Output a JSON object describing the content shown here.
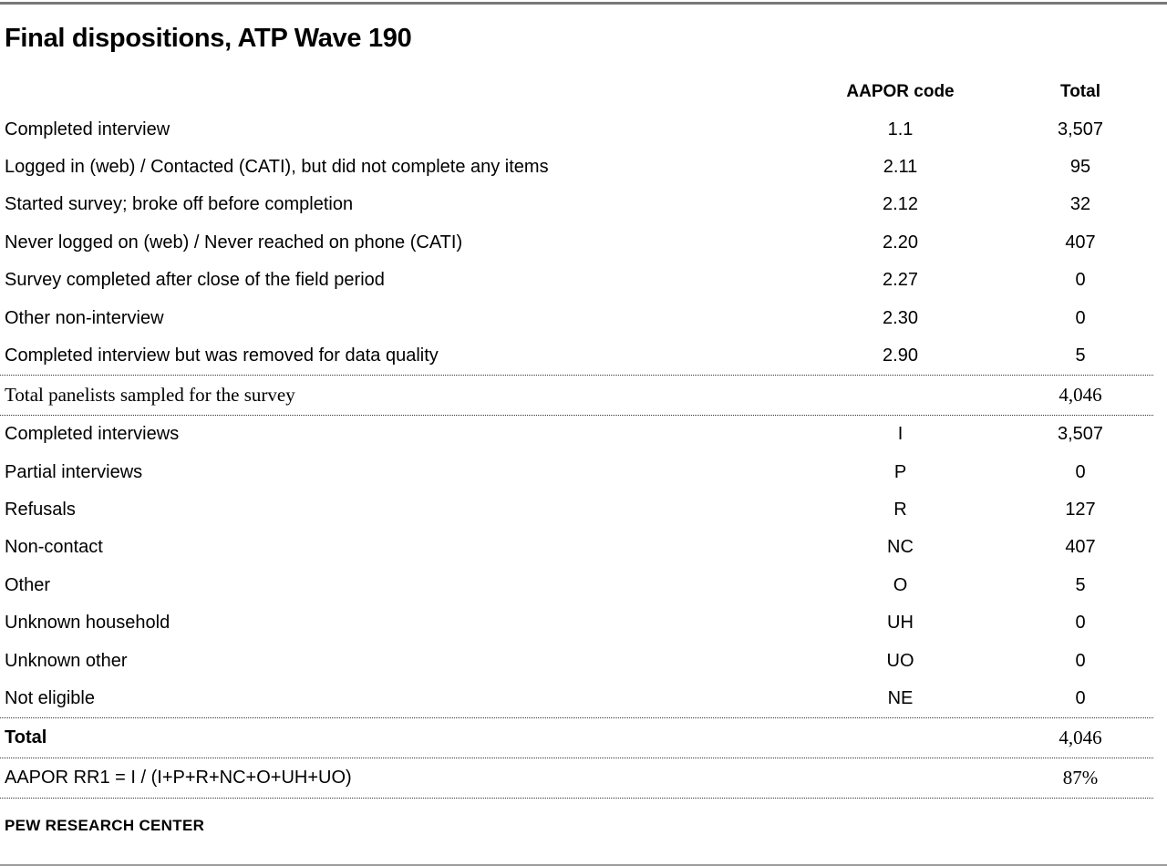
{
  "title": "Final dispositions, ATP Wave 190",
  "footer": "PEW RESEARCH CENTER",
  "colors": {
    "text": "#000000",
    "top_rule": "#787878",
    "bottom_rule": "#9c9c9c",
    "dotted_rule": "#333333"
  },
  "table": {
    "columns": {
      "label": "",
      "code": "AAPOR code",
      "total": "Total"
    },
    "rows": [
      {
        "label": "Completed interview",
        "code": "1.1",
        "total": "3,507",
        "variant": "normal"
      },
      {
        "label": "Logged in (web) / Contacted (CATI), but did not complete any items",
        "code": "2.11",
        "total": "95",
        "variant": "normal"
      },
      {
        "label": "Started survey; broke off before completion",
        "code": "2.12",
        "total": "32",
        "variant": "normal"
      },
      {
        "label": "Never logged on (web) / Never reached on phone (CATI)",
        "code": "2.20",
        "total": "407",
        "variant": "normal"
      },
      {
        "label": "Survey completed after close of the field period",
        "code": "2.27",
        "total": "0",
        "variant": "normal"
      },
      {
        "label": "Other non-interview",
        "code": "2.30",
        "total": "0",
        "variant": "normal"
      },
      {
        "label": "Completed interview but was removed for data quality",
        "code": "2.90",
        "total": "5",
        "variant": "normal"
      },
      {
        "label": "Total panelists sampled for the survey",
        "code": "",
        "total": "4,046",
        "variant": "serif"
      },
      {
        "label": "Completed interviews",
        "code": "I",
        "total": "3,507",
        "variant": "normal"
      },
      {
        "label": "Partial interviews",
        "code": "P",
        "total": "0",
        "variant": "normal"
      },
      {
        "label": "Refusals",
        "code": "R",
        "total": "127",
        "variant": "normal"
      },
      {
        "label": "Non-contact",
        "code": "NC",
        "total": "407",
        "variant": "normal"
      },
      {
        "label": "Other",
        "code": "O",
        "total": "5",
        "variant": "normal"
      },
      {
        "label": "Unknown household",
        "code": "UH",
        "total": "0",
        "variant": "normal"
      },
      {
        "label": "Unknown other",
        "code": "UO",
        "total": "0",
        "variant": "normal"
      },
      {
        "label": "Not eligible",
        "code": "NE",
        "total": "0",
        "variant": "normal"
      },
      {
        "label": "Total",
        "code": "",
        "total": "4,046",
        "variant": "total"
      },
      {
        "label": "AAPOR RR1 = I / (I+P+R+NC+O+UH+UO)",
        "code": "",
        "total": "87%",
        "variant": "formula"
      }
    ]
  }
}
